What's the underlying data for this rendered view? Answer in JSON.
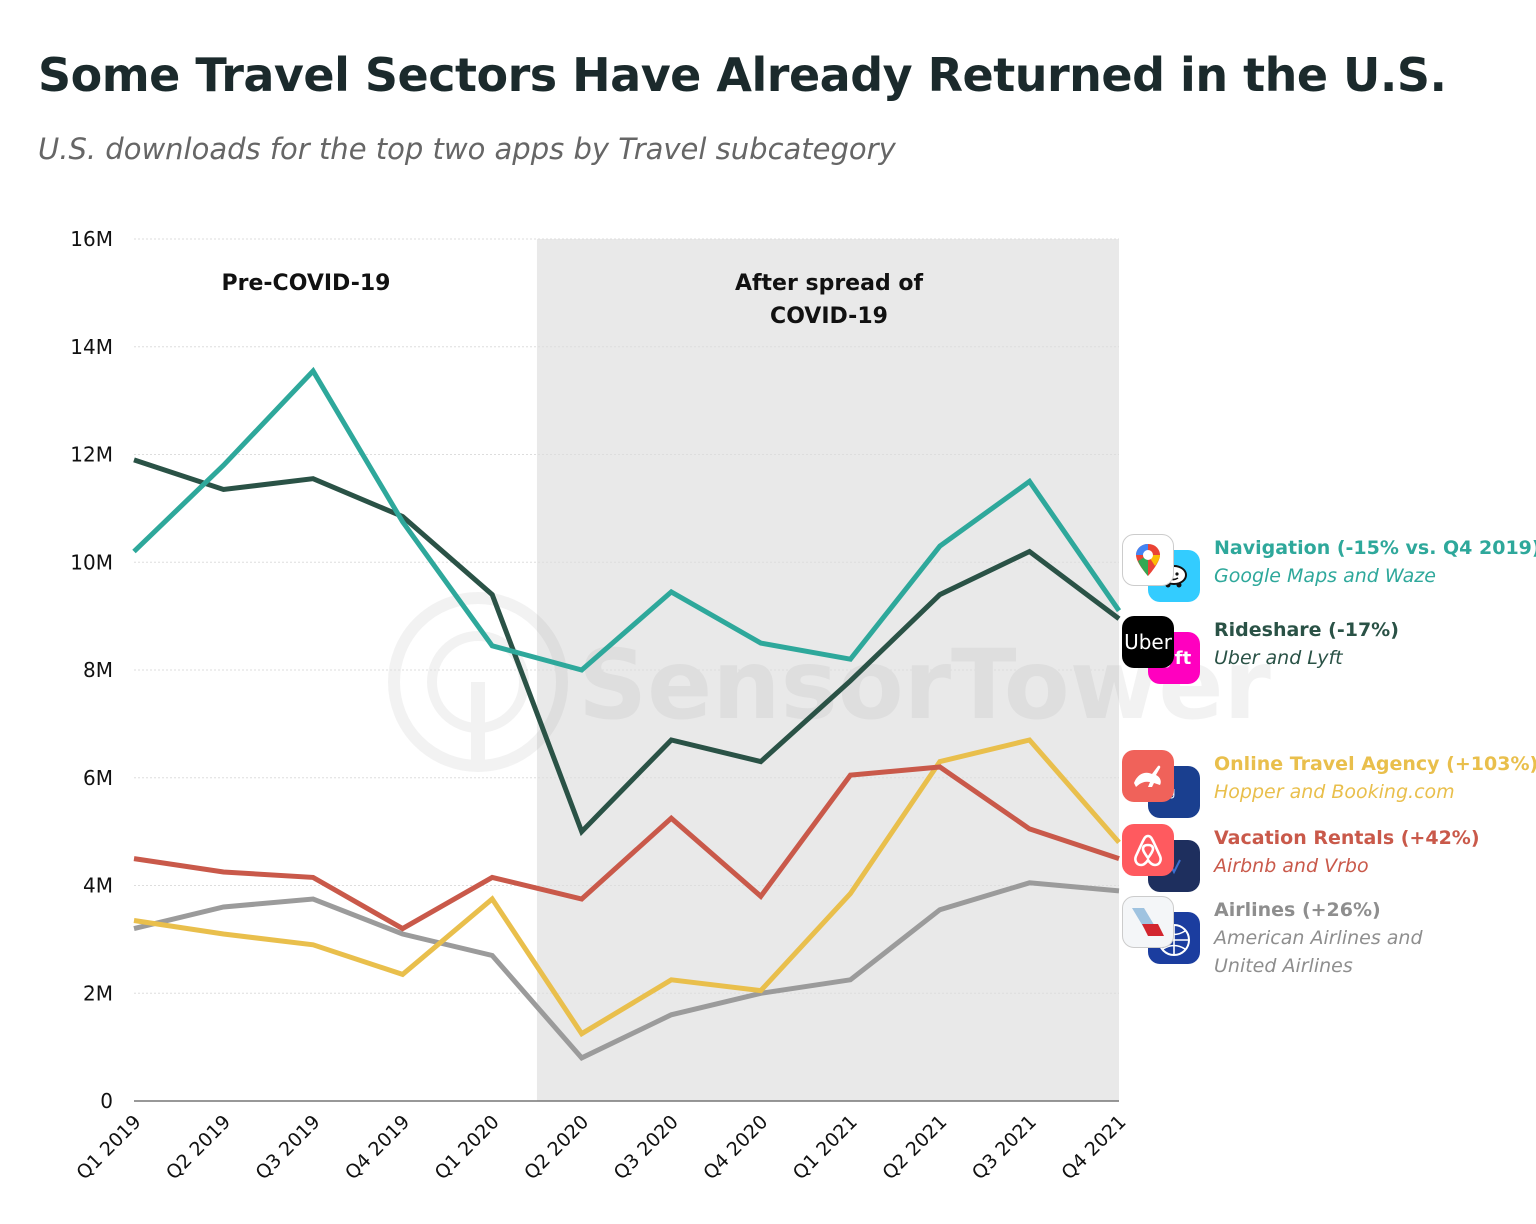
{
  "title": "Some Travel Sectors Have Already Returned in the U.S.",
  "subtitle": "U.S. downloads for the top two apps by Travel subcategory",
  "chart_data": {
    "type": "line",
    "categories": [
      "Q1 2019",
      "Q2 2019",
      "Q3 2019",
      "Q4 2019",
      "Q1 2020",
      "Q2 2020",
      "Q3 2020",
      "Q4 2020",
      "Q1 2021",
      "Q2 2021",
      "Q3 2021",
      "Q4 2021"
    ],
    "ylim": [
      0,
      16000000
    ],
    "yticks": [
      "0",
      "2M",
      "4M",
      "6M",
      "8M",
      "10M",
      "12M",
      "14M",
      "16M"
    ],
    "grid": true,
    "regions": [
      {
        "label": "Pre-COVID-19",
        "shaded": false
      },
      {
        "label_lines": [
          "After spread of",
          "COVID-19"
        ],
        "shaded": true,
        "shade_color": "#e9e9e9",
        "from": "Q1 2020",
        "to": "Q4 2021"
      }
    ],
    "series": [
      {
        "name": "Navigation",
        "color": "#2ea89b",
        "values": [
          10200000,
          11800000,
          13550000,
          10750000,
          8450000,
          8000000,
          9450000,
          8500000,
          8200000,
          10300000,
          11500000,
          9100000
        ]
      },
      {
        "name": "Rideshare",
        "color": "#2a5246",
        "values": [
          11900000,
          11350000,
          11550000,
          10850000,
          9400000,
          5000000,
          6700000,
          6300000,
          7800000,
          9400000,
          10200000,
          8950000
        ]
      },
      {
        "name": "Online Travel Agency",
        "color": "#e9bf4c",
        "values": [
          3350000,
          3100000,
          2900000,
          2350000,
          3750000,
          1250000,
          2250000,
          2050000,
          3850000,
          6300000,
          6700000,
          4800000
        ]
      },
      {
        "name": "Vacation Rentals",
        "color": "#c9594a",
        "values": [
          4500000,
          4250000,
          4150000,
          3200000,
          4150000,
          3750000,
          5250000,
          3800000,
          6050000,
          6200000,
          5050000,
          4500000
        ]
      },
      {
        "name": "Airlines",
        "color": "#9b9b9b",
        "values": [
          3200000,
          3600000,
          3750000,
          3100000,
          2700000,
          800000,
          1600000,
          2000000,
          2250000,
          3550000,
          4050000,
          3900000
        ]
      }
    ]
  },
  "legend": [
    {
      "title": "Navigation (-15% vs. Q4 2019)",
      "subtitle_lines": [
        "Google Maps and Waze"
      ],
      "color": "#2ea89b",
      "subtitle_color": "#2ea89b",
      "icons": [
        "google-maps-icon",
        "waze-icon"
      ]
    },
    {
      "title": "Rideshare (-17%)",
      "subtitle_lines": [
        "Uber and Lyft"
      ],
      "color": "#2a5246",
      "subtitle_color": "#2a5246",
      "icons": [
        "uber-icon",
        "lyft-icon"
      ],
      "icon_text": "Uber"
    },
    {
      "title": "Online Travel Agency (+103%)",
      "subtitle_lines": [
        "Hopper and Booking.com"
      ],
      "color": "#e9bf4c",
      "subtitle_color": "#e9bf4c",
      "icons": [
        "hopper-icon",
        "booking-icon"
      ],
      "icon_text_b": "king"
    },
    {
      "title": "Vacation Rentals (+42%)",
      "subtitle_lines": [
        "Airbnb and Vrbo"
      ],
      "color": "#c9594a",
      "subtitle_color": "#c9594a",
      "icons": [
        "airbnb-icon",
        "vrbo-icon"
      ]
    },
    {
      "title": "Airlines (+26%)",
      "subtitle_lines": [
        "American Airlines and",
        "United Airlines"
      ],
      "color": "#8e8e8e",
      "subtitle_color": "#8e8e8e",
      "icons": [
        "american-airlines-icon",
        "united-airlines-icon"
      ]
    }
  ],
  "watermark": "SensorTower"
}
